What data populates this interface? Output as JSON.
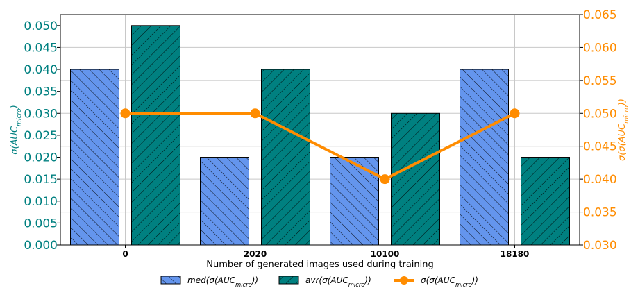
{
  "chart_data": {
    "type": "bar",
    "categories": [
      "0",
      "2020",
      "10100",
      "18180"
    ],
    "xlabel": "Number of generated images used during training",
    "ylabel": "σ(AUC_micro)",
    "ylabel_right": "σ(σ(AUC_micro))",
    "ylim": [
      0,
      0.0525
    ],
    "ylim_right": [
      0.03,
      0.065
    ],
    "yticks": [
      0.0,
      0.005,
      0.01,
      0.015,
      0.02,
      0.025,
      0.03,
      0.035,
      0.04,
      0.045,
      0.05
    ],
    "yticks_right": [
      0.03,
      0.035,
      0.04,
      0.045,
      0.05,
      0.055,
      0.06,
      0.065
    ],
    "grid": true,
    "legend_position": "bottom",
    "series": [
      {
        "name": "med(σ(AUC_micro))",
        "axis": "left",
        "kind": "bar",
        "hatch": "forward-diagonal",
        "color": "#6495ed",
        "values": [
          0.04,
          0.02,
          0.02,
          0.04
        ]
      },
      {
        "name": "avr(σ(AUC_micro))",
        "axis": "left",
        "kind": "bar",
        "hatch": "back-diagonal",
        "color": "#008080",
        "values": [
          0.05,
          0.04,
          0.03,
          0.02
        ]
      },
      {
        "name": "σ(σ(AUC_micro))",
        "axis": "right",
        "kind": "line",
        "color": "#ff8c00",
        "values": [
          0.05,
          0.05,
          0.04,
          0.05
        ]
      }
    ],
    "colors": {
      "left_axis": "#008080",
      "right_axis": "#ff8c00",
      "grid": "#c8c8c8"
    }
  }
}
